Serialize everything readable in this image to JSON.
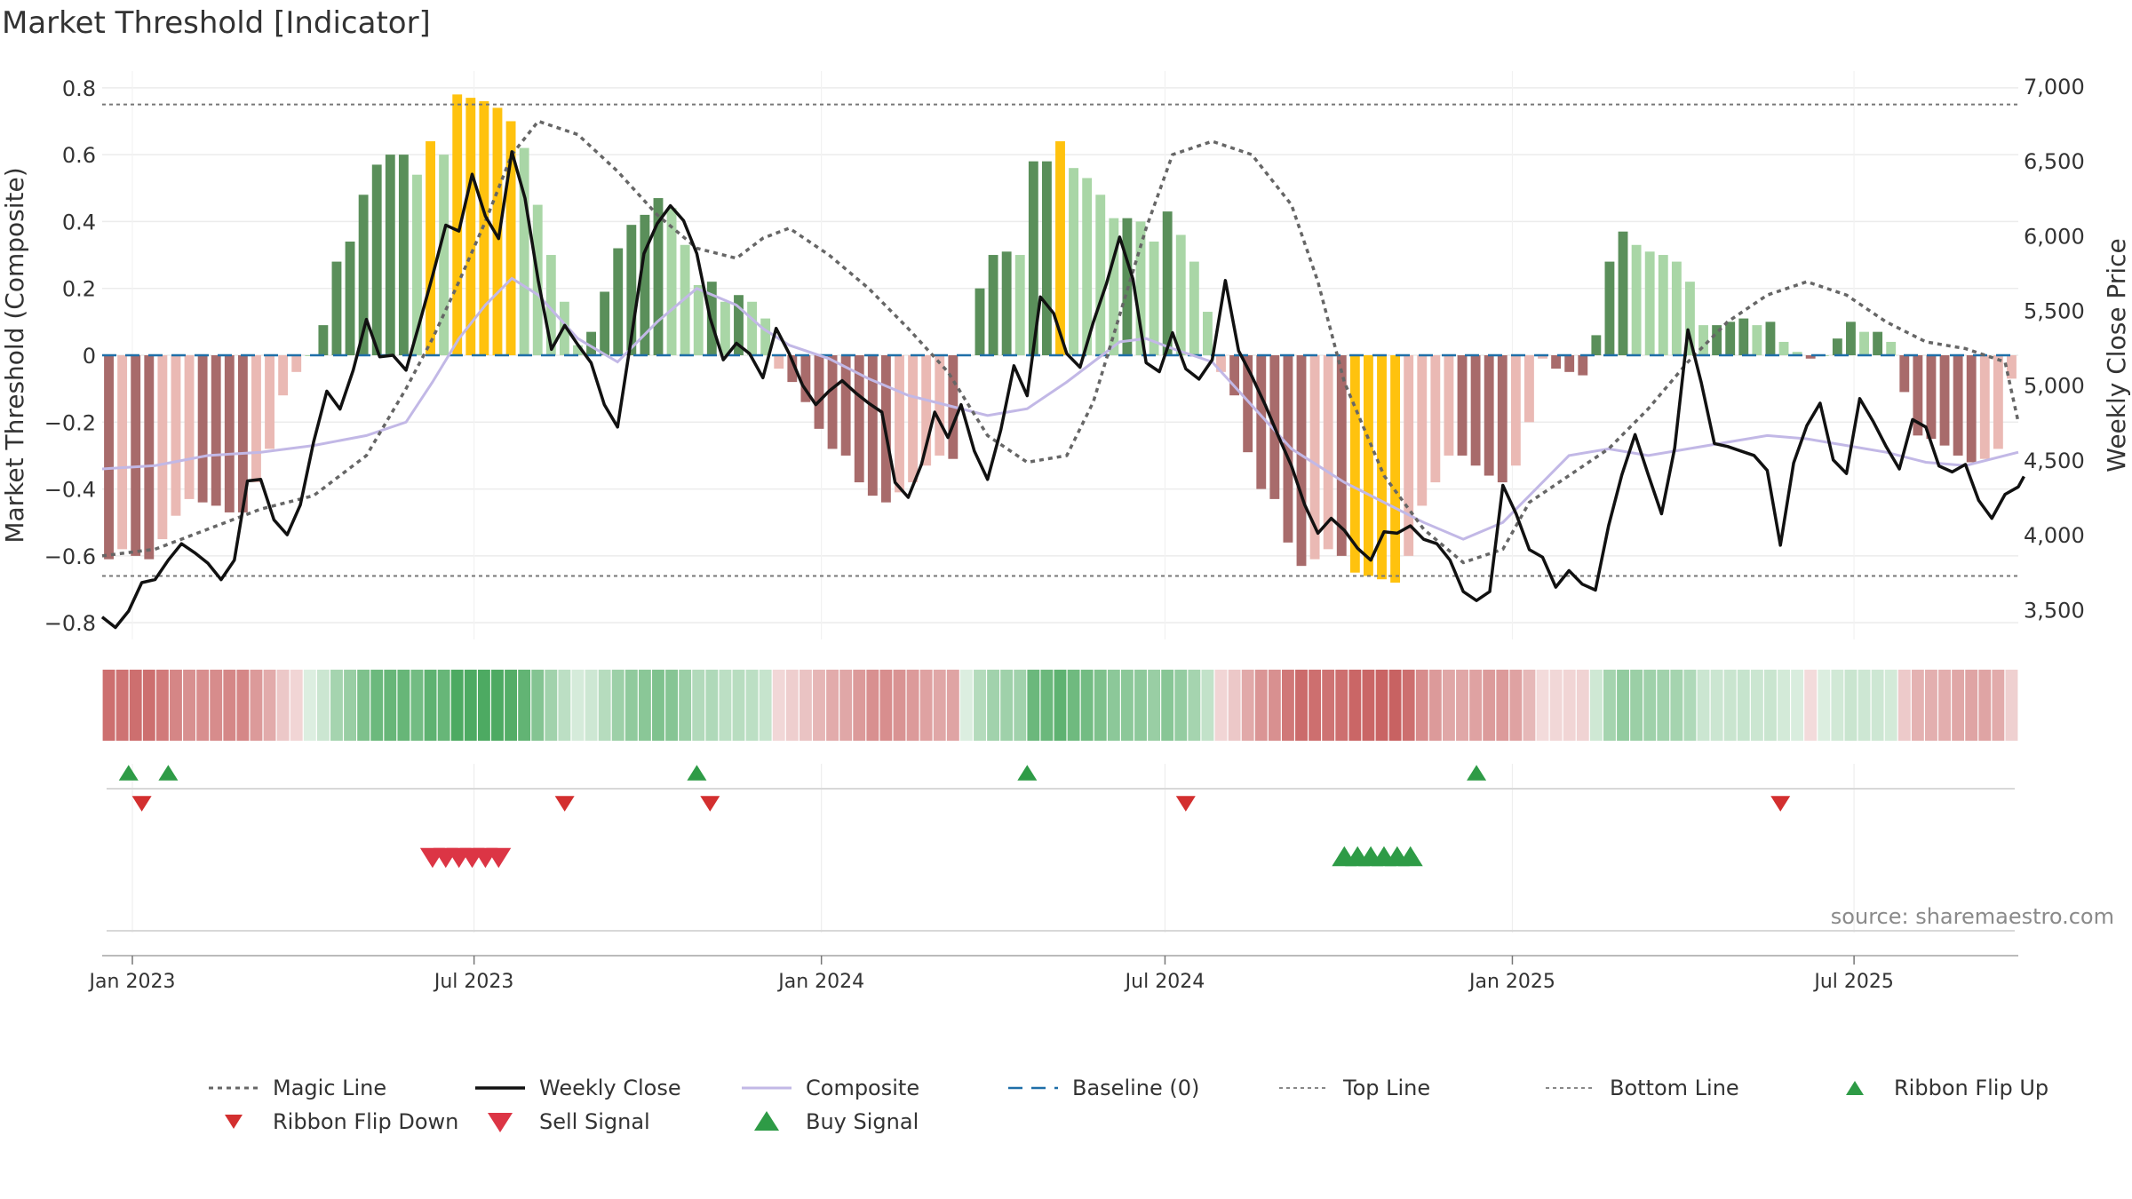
{
  "chart_data": {
    "type": "bar",
    "title": "Market Threshold [Indicator]",
    "ylabel": "Market Threshold (Composite)",
    "y2label": "Weekly Close Price",
    "ylim": [
      -0.85,
      0.85
    ],
    "y2lim": [
      3300,
      7100
    ],
    "y_ticks": [
      0.8,
      0.6,
      0.4,
      0.2,
      0,
      -0.2,
      -0.4,
      -0.6,
      -0.8
    ],
    "y_tick_labels": [
      "0.8",
      "0.6",
      "0.4",
      "0.2",
      "0",
      "−0.2",
      "−0.4",
      "−0.6",
      "−0.8"
    ],
    "y2_ticks": [
      7000,
      6500,
      6000,
      5500,
      5000,
      4500,
      4000,
      3500
    ],
    "y2_tick_labels": [
      "7,000",
      "6,500",
      "6,000",
      "5,500",
      "5,000",
      "4,500",
      "4,000",
      "3,500"
    ],
    "x_ticks": [
      "2023-01-01",
      "2023-07-01",
      "2024-01-01",
      "2024-07-01",
      "2025-01-01",
      "2025-07-01"
    ],
    "x_tick_labels": [
      "Jan 2023",
      "Jul 2023",
      "Jan 2024",
      "Jul 2024",
      "Jan 2025",
      "Jul 2025"
    ],
    "x_start": "2022-12-16",
    "x_end": "2025-09-26",
    "magic_line_threshold_labels": {
      "top": 0.75,
      "bottom": -0.66
    },
    "magic_line": [
      [
        "2022-12-16",
        -0.6
      ],
      [
        "2023-01-13",
        -0.58
      ],
      [
        "2023-02-10",
        -0.52
      ],
      [
        "2023-03-10",
        -0.46
      ],
      [
        "2023-04-07",
        -0.42
      ],
      [
        "2023-05-05",
        -0.3
      ],
      [
        "2023-05-26",
        -0.1
      ],
      [
        "2023-06-09",
        0.05
      ],
      [
        "2023-06-23",
        0.22
      ],
      [
        "2023-07-07",
        0.4
      ],
      [
        "2023-07-21",
        0.6
      ],
      [
        "2023-08-04",
        0.7
      ],
      [
        "2023-08-25",
        0.66
      ],
      [
        "2023-09-15",
        0.55
      ],
      [
        "2023-10-06",
        0.42
      ],
      [
        "2023-10-27",
        0.32
      ],
      [
        "2023-11-17",
        0.29
      ],
      [
        "2023-12-01",
        0.35
      ],
      [
        "2023-12-15",
        0.38
      ],
      [
        "2024-01-05",
        0.3
      ],
      [
        "2024-01-26",
        0.2
      ],
      [
        "2024-02-16",
        0.08
      ],
      [
        "2024-03-08",
        -0.05
      ],
      [
        "2024-03-29",
        -0.24
      ],
      [
        "2024-04-19",
        -0.32
      ],
      [
        "2024-05-10",
        -0.3
      ],
      [
        "2024-05-24",
        -0.14
      ],
      [
        "2024-06-07",
        0.12
      ],
      [
        "2024-06-21",
        0.38
      ],
      [
        "2024-07-05",
        0.6
      ],
      [
        "2024-07-26",
        0.64
      ],
      [
        "2024-08-16",
        0.6
      ],
      [
        "2024-09-06",
        0.45
      ],
      [
        "2024-09-20",
        0.22
      ],
      [
        "2024-10-04",
        -0.08
      ],
      [
        "2024-10-25",
        -0.36
      ],
      [
        "2024-11-15",
        -0.52
      ],
      [
        "2024-12-06",
        -0.62
      ],
      [
        "2024-12-27",
        -0.58
      ],
      [
        "2025-01-10",
        -0.44
      ],
      [
        "2025-01-31",
        -0.36
      ],
      [
        "2025-02-21",
        -0.28
      ],
      [
        "2025-03-14",
        -0.16
      ],
      [
        "2025-04-04",
        -0.02
      ],
      [
        "2025-04-25",
        0.1
      ],
      [
        "2025-05-16",
        0.18
      ],
      [
        "2025-06-06",
        0.22
      ],
      [
        "2025-06-27",
        0.18
      ],
      [
        "2025-07-18",
        0.1
      ],
      [
        "2025-08-08",
        0.04
      ],
      [
        "2025-08-29",
        0.02
      ],
      [
        "2025-09-19",
        -0.02
      ],
      [
        "2025-09-26",
        -0.2
      ]
    ],
    "composite_line": [
      [
        "2022-12-16",
        -0.34
      ],
      [
        "2023-01-13",
        -0.33
      ],
      [
        "2023-02-10",
        -0.3
      ],
      [
        "2023-03-10",
        -0.29
      ],
      [
        "2023-04-07",
        -0.27
      ],
      [
        "2023-05-05",
        -0.24
      ],
      [
        "2023-05-26",
        -0.2
      ],
      [
        "2023-06-09",
        -0.08
      ],
      [
        "2023-06-23",
        0.05
      ],
      [
        "2023-07-07",
        0.15
      ],
      [
        "2023-07-21",
        0.23
      ],
      [
        "2023-08-04",
        0.18
      ],
      [
        "2023-08-25",
        0.05
      ],
      [
        "2023-09-15",
        -0.02
      ],
      [
        "2023-10-06",
        0.1
      ],
      [
        "2023-10-27",
        0.2
      ],
      [
        "2023-11-17",
        0.15
      ],
      [
        "2023-12-01",
        0.08
      ],
      [
        "2023-12-15",
        0.03
      ],
      [
        "2024-01-05",
        -0.01
      ],
      [
        "2024-01-26",
        -0.07
      ],
      [
        "2024-02-16",
        -0.12
      ],
      [
        "2024-03-08",
        -0.15
      ],
      [
        "2024-03-29",
        -0.18
      ],
      [
        "2024-04-19",
        -0.16
      ],
      [
        "2024-05-10",
        -0.08
      ],
      [
        "2024-05-24",
        -0.02
      ],
      [
        "2024-06-07",
        0.04
      ],
      [
        "2024-06-21",
        0.05
      ],
      [
        "2024-07-05",
        0.02
      ],
      [
        "2024-07-26",
        -0.02
      ],
      [
        "2024-08-16",
        -0.15
      ],
      [
        "2024-09-06",
        -0.28
      ],
      [
        "2024-09-20",
        -0.33
      ],
      [
        "2024-10-04",
        -0.38
      ],
      [
        "2024-10-25",
        -0.44
      ],
      [
        "2024-11-15",
        -0.5
      ],
      [
        "2024-12-06",
        -0.55
      ],
      [
        "2024-12-27",
        -0.5
      ],
      [
        "2025-01-10",
        -0.42
      ],
      [
        "2025-01-31",
        -0.3
      ],
      [
        "2025-02-21",
        -0.28
      ],
      [
        "2025-03-14",
        -0.3
      ],
      [
        "2025-04-04",
        -0.28
      ],
      [
        "2025-04-25",
        -0.26
      ],
      [
        "2025-05-16",
        -0.24
      ],
      [
        "2025-06-06",
        -0.25
      ],
      [
        "2025-06-27",
        -0.27
      ],
      [
        "2025-07-18",
        -0.29
      ],
      [
        "2025-08-08",
        -0.32
      ],
      [
        "2025-08-29",
        -0.33
      ],
      [
        "2025-09-19",
        -0.3
      ],
      [
        "2025-09-26",
        -0.29
      ]
    ],
    "weekly_close": [
      [
        "2022-12-16",
        3450
      ],
      [
        "2022-12-23",
        3380
      ],
      [
        "2022-12-30",
        3490
      ],
      [
        "2023-01-06",
        3680
      ],
      [
        "2023-01-13",
        3700
      ],
      [
        "2023-01-20",
        3830
      ],
      [
        "2023-01-27",
        3940
      ],
      [
        "2023-02-03",
        3880
      ],
      [
        "2023-02-10",
        3810
      ],
      [
        "2023-02-17",
        3700
      ],
      [
        "2023-02-24",
        3830
      ],
      [
        "2023-03-03",
        4360
      ],
      [
        "2023-03-10",
        4370
      ],
      [
        "2023-03-17",
        4100
      ],
      [
        "2023-03-24",
        4000
      ],
      [
        "2023-03-31",
        4200
      ],
      [
        "2023-04-07",
        4620
      ],
      [
        "2023-04-14",
        4960
      ],
      [
        "2023-04-21",
        4840
      ],
      [
        "2023-04-28",
        5100
      ],
      [
        "2023-05-05",
        5440
      ],
      [
        "2023-05-12",
        5190
      ],
      [
        "2023-05-19",
        5200
      ],
      [
        "2023-05-26",
        5100
      ],
      [
        "2023-06-02",
        5410
      ],
      [
        "2023-06-09",
        5730
      ],
      [
        "2023-06-16",
        6070
      ],
      [
        "2023-06-23",
        6030
      ],
      [
        "2023-06-30",
        6410
      ],
      [
        "2023-07-07",
        6130
      ],
      [
        "2023-07-14",
        5980
      ],
      [
        "2023-07-21",
        6560
      ],
      [
        "2023-07-28",
        6250
      ],
      [
        "2023-08-04",
        5700
      ],
      [
        "2023-08-11",
        5240
      ],
      [
        "2023-08-18",
        5400
      ],
      [
        "2023-08-25",
        5270
      ],
      [
        "2023-09-01",
        5150
      ],
      [
        "2023-09-08",
        4870
      ],
      [
        "2023-09-15",
        4720
      ],
      [
        "2023-09-22",
        5290
      ],
      [
        "2023-09-29",
        5880
      ],
      [
        "2023-10-06",
        6080
      ],
      [
        "2023-10-13",
        6200
      ],
      [
        "2023-10-20",
        6100
      ],
      [
        "2023-10-27",
        5880
      ],
      [
        "2023-11-03",
        5450
      ],
      [
        "2023-11-10",
        5170
      ],
      [
        "2023-11-17",
        5280
      ],
      [
        "2023-11-24",
        5210
      ],
      [
        "2023-12-01",
        5050
      ],
      [
        "2023-12-08",
        5380
      ],
      [
        "2023-12-15",
        5210
      ],
      [
        "2023-12-22",
        5000
      ],
      [
        "2023-12-29",
        4870
      ],
      [
        "2024-01-05",
        4960
      ],
      [
        "2024-01-12",
        5030
      ],
      [
        "2024-01-19",
        4950
      ],
      [
        "2024-01-26",
        4880
      ],
      [
        "2024-02-02",
        4820
      ],
      [
        "2024-02-09",
        4350
      ],
      [
        "2024-02-16",
        4250
      ],
      [
        "2024-02-23",
        4470
      ],
      [
        "2024-03-01",
        4820
      ],
      [
        "2024-03-08",
        4650
      ],
      [
        "2024-03-15",
        4870
      ],
      [
        "2024-03-22",
        4560
      ],
      [
        "2024-03-29",
        4370
      ],
      [
        "2024-04-05",
        4700
      ],
      [
        "2024-04-12",
        5130
      ],
      [
        "2024-04-19",
        4930
      ],
      [
        "2024-04-26",
        5590
      ],
      [
        "2024-05-03",
        5480
      ],
      [
        "2024-05-10",
        5210
      ],
      [
        "2024-05-17",
        5120
      ],
      [
        "2024-05-24",
        5420
      ],
      [
        "2024-05-31",
        5680
      ],
      [
        "2024-06-07",
        5990
      ],
      [
        "2024-06-14",
        5710
      ],
      [
        "2024-06-21",
        5150
      ],
      [
        "2024-06-28",
        5090
      ],
      [
        "2024-07-05",
        5350
      ],
      [
        "2024-07-12",
        5110
      ],
      [
        "2024-07-19",
        5040
      ],
      [
        "2024-07-26",
        5170
      ],
      [
        "2024-08-02",
        5700
      ],
      [
        "2024-08-09",
        5230
      ],
      [
        "2024-08-16",
        5060
      ],
      [
        "2024-08-23",
        4870
      ],
      [
        "2024-08-30",
        4660
      ],
      [
        "2024-09-06",
        4460
      ],
      [
        "2024-09-13",
        4200
      ],
      [
        "2024-09-20",
        4010
      ],
      [
        "2024-09-27",
        4110
      ],
      [
        "2024-10-04",
        4030
      ],
      [
        "2024-10-11",
        3910
      ],
      [
        "2024-10-18",
        3830
      ],
      [
        "2024-10-25",
        4020
      ],
      [
        "2024-11-01",
        4010
      ],
      [
        "2024-11-08",
        4060
      ],
      [
        "2024-11-15",
        3970
      ],
      [
        "2024-11-22",
        3940
      ],
      [
        "2024-11-29",
        3830
      ],
      [
        "2024-12-06",
        3620
      ],
      [
        "2024-12-13",
        3560
      ],
      [
        "2024-12-20",
        3620
      ],
      [
        "2024-12-27",
        4330
      ],
      [
        "2025-01-03",
        4140
      ],
      [
        "2025-01-10",
        3900
      ],
      [
        "2025-01-17",
        3850
      ],
      [
        "2025-01-24",
        3650
      ],
      [
        "2025-01-31",
        3760
      ],
      [
        "2025-02-07",
        3670
      ],
      [
        "2025-02-14",
        3630
      ],
      [
        "2025-02-21",
        4060
      ],
      [
        "2025-02-28",
        4400
      ],
      [
        "2025-03-07",
        4670
      ],
      [
        "2025-03-14",
        4400
      ],
      [
        "2025-03-21",
        4140
      ],
      [
        "2025-03-28",
        4580
      ],
      [
        "2025-04-04",
        5370
      ],
      [
        "2025-04-11",
        5020
      ],
      [
        "2025-04-18",
        4610
      ],
      [
        "2025-04-25",
        4590
      ],
      [
        "2025-05-02",
        4560
      ],
      [
        "2025-05-09",
        4530
      ],
      [
        "2025-05-16",
        4430
      ],
      [
        "2025-05-23",
        3930
      ],
      [
        "2025-05-30",
        4480
      ],
      [
        "2025-06-06",
        4730
      ],
      [
        "2025-06-13",
        4880
      ],
      [
        "2025-06-20",
        4500
      ],
      [
        "2025-06-27",
        4410
      ],
      [
        "2025-07-04",
        4910
      ],
      [
        "2025-07-11",
        4760
      ],
      [
        "2025-07-18",
        4590
      ],
      [
        "2025-07-25",
        4440
      ],
      [
        "2025-08-01",
        4770
      ],
      [
        "2025-08-08",
        4720
      ],
      [
        "2025-08-15",
        4460
      ],
      [
        "2025-08-22",
        4420
      ],
      [
        "2025-08-29",
        4470
      ],
      [
        "2025-09-05",
        4230
      ],
      [
        "2025-09-12",
        4110
      ],
      [
        "2025-09-19",
        4270
      ],
      [
        "2025-09-26",
        4320
      ],
      [
        "2025-09-29",
        4390
      ]
    ],
    "bars": [
      -0.61,
      -0.58,
      -0.6,
      -0.61,
      -0.55,
      -0.48,
      -0.43,
      -0.44,
      -0.45,
      -0.47,
      -0.47,
      -0.38,
      -0.28,
      -0.12,
      -0.05,
      0.0,
      0.09,
      0.28,
      0.34,
      0.48,
      0.57,
      0.6,
      0.6,
      0.54,
      0.64,
      0.6,
      0.78,
      0.77,
      0.76,
      0.74,
      0.7,
      0.62,
      0.45,
      0.3,
      0.16,
      0.03,
      0.07,
      0.19,
      0.32,
      0.39,
      0.42,
      0.47,
      0.44,
      0.33,
      0.21,
      0.22,
      0.16,
      0.18,
      0.16,
      0.11,
      -0.04,
      -0.08,
      -0.14,
      -0.22,
      -0.28,
      -0.3,
      -0.38,
      -0.42,
      -0.44,
      -0.41,
      -0.38,
      -0.33,
      -0.3,
      -0.31,
      0.0,
      0.2,
      0.3,
      0.31,
      0.3,
      0.58,
      0.58,
      0.64,
      0.56,
      0.53,
      0.48,
      0.41,
      0.41,
      0.4,
      0.34,
      0.43,
      0.36,
      0.28,
      0.13,
      -0.05,
      -0.12,
      -0.29,
      -0.4,
      -0.43,
      -0.56,
      -0.63,
      -0.61,
      -0.58,
      -0.6,
      -0.65,
      -0.66,
      -0.67,
      -0.68,
      -0.6,
      -0.45,
      -0.38,
      -0.3,
      -0.3,
      -0.33,
      -0.36,
      -0.38,
      -0.33,
      -0.2,
      -0.01,
      -0.04,
      -0.05,
      -0.06,
      0.06,
      0.28,
      0.37,
      0.33,
      0.31,
      0.3,
      0.28,
      0.22,
      0.09,
      0.09,
      0.1,
      0.11,
      0.09,
      0.1,
      0.04,
      0.01,
      -0.01,
      0.0,
      0.05,
      0.1,
      0.07,
      0.07,
      0.04,
      -0.11,
      -0.24,
      -0.25,
      -0.27,
      -0.3,
      -0.32,
      -0.31,
      -0.28,
      -0.07
    ],
    "ribbon_flip_up": [
      "2022-12-30",
      "2023-01-20",
      "2023-10-27",
      "2024-04-19",
      "2024-12-13"
    ],
    "ribbon_flip_down": [
      "2023-01-06",
      "2023-08-18",
      "2023-11-03",
      "2024-07-12",
      "2025-05-23"
    ],
    "sell_signal": [
      "2023-06-09",
      "2023-06-16",
      "2023-06-23",
      "2023-06-30",
      "2023-07-07",
      "2023-07-14"
    ],
    "buy_signal": [
      "2024-10-04",
      "2024-10-11",
      "2024-10-18",
      "2024-10-25",
      "2024-11-01",
      "2024-11-08"
    ],
    "source": "source: sharemaestro.com",
    "legend": [
      {
        "label": "Magic Line",
        "style": "dotted-gray"
      },
      {
        "label": "Weekly Close",
        "style": "solid-black"
      },
      {
        "label": "Composite",
        "style": "solid-lavender"
      },
      {
        "label": "Baseline (0)",
        "style": "dashed-blue"
      },
      {
        "label": "Top Line",
        "style": "dotted-gray-thin"
      },
      {
        "label": "Bottom Line",
        "style": "dotted-gray-thin"
      },
      {
        "label": "Ribbon Flip Up",
        "style": "triangle-up-green"
      },
      {
        "label": "Ribbon Flip Down",
        "style": "triangle-down-red"
      },
      {
        "label": "Sell Signal",
        "style": "triangle-down-red-large"
      },
      {
        "label": "Buy Signal",
        "style": "triangle-up-green-large"
      }
    ],
    "legend_position": "bottom",
    "grid": true,
    "colors": {
      "strong_bull": "#5a8f5a",
      "weak_bull": "#a9d6a6",
      "strong_bear": "#a86b6b",
      "weak_bear": "#eab9b4",
      "extreme": "#ffc20e",
      "weekly_close": "#111111",
      "composite": "#c2b8e6",
      "magic_line": "#666666",
      "baseline": "#1f6fa8",
      "flip_up": "#2e9b46",
      "flip_down": "#d32f2f",
      "sell": "#dc3545",
      "buy": "#2e9b46"
    }
  }
}
